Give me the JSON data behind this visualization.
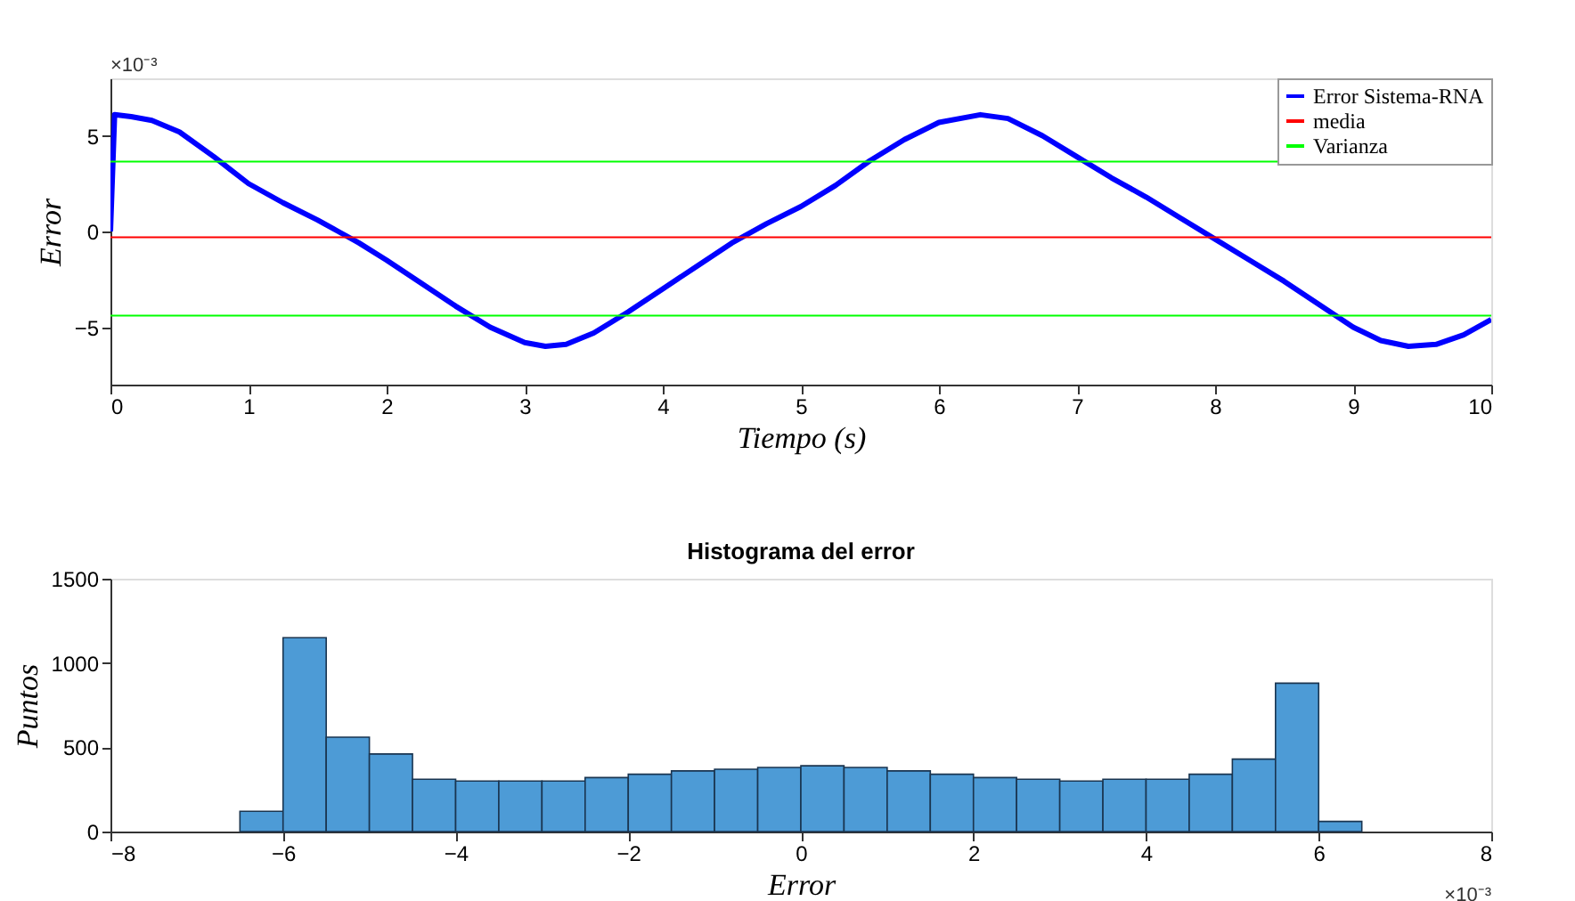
{
  "chart_data": [
    {
      "type": "line",
      "xlabel": "Tiempo (s)",
      "ylabel": "Error",
      "annotations": [
        "×10⁻³"
      ],
      "xlim": [
        0,
        10
      ],
      "xticks": [
        0,
        1,
        2,
        3,
        4,
        5,
        6,
        7,
        8,
        9,
        10
      ],
      "ylim": [
        -8,
        8
      ],
      "yticks": [
        -5,
        0,
        5
      ],
      "grid": false,
      "legend": "top right",
      "series": [
        {
          "name": "Error Sistema-RNA",
          "color": "#0000ff",
          "x": [
            0,
            0.03,
            0.15,
            0.3,
            0.5,
            0.75,
            1,
            1.25,
            1.5,
            1.65,
            1.8,
            2,
            2.25,
            2.5,
            2.75,
            3,
            3.15,
            3.3,
            3.5,
            3.75,
            4,
            4.25,
            4.5,
            4.75,
            5,
            5.25,
            5.5,
            5.75,
            6,
            6.3,
            6.5,
            6.75,
            7,
            7.25,
            7.5,
            7.75,
            8,
            8.25,
            8.5,
            8.75,
            9,
            9.2,
            9.4,
            9.6,
            9.8,
            10
          ],
          "values": [
            0,
            6.1,
            6.0,
            5.8,
            5.2,
            3.9,
            2.5,
            1.5,
            0.6,
            0,
            -0.6,
            -1.5,
            -2.7,
            -3.9,
            -5.0,
            -5.8,
            -6.0,
            -5.9,
            -5.3,
            -4.2,
            -3.0,
            -1.8,
            -0.6,
            0.4,
            1.3,
            2.4,
            3.7,
            4.8,
            5.7,
            6.1,
            5.9,
            5.0,
            3.9,
            2.8,
            1.8,
            0.7,
            -0.4,
            -1.5,
            -2.6,
            -3.8,
            -5.0,
            -5.7,
            -6.0,
            -5.9,
            -5.4,
            -4.6
          ]
        }
      ],
      "ref_lines": [
        {
          "axis": "y",
          "value": -0.3,
          "label": "media",
          "color": "#ff0000"
        },
        {
          "axis": "y",
          "value": 3.65,
          "label": "Varianza",
          "color": "#00ff00"
        },
        {
          "axis": "y",
          "value": -4.4,
          "label": null,
          "color": "#00ff00"
        }
      ]
    },
    {
      "type": "histogram",
      "title": "Histograma del error",
      "xlabel": "Error",
      "ylabel": "Puntos",
      "annotations": [
        "×10⁻³"
      ],
      "xlim": [
        -8,
        8
      ],
      "xticks": [
        -8,
        -6,
        -4,
        -2,
        0,
        2,
        4,
        6,
        8
      ],
      "ylim": [
        0,
        1500
      ],
      "yticks": [
        0,
        500,
        1000,
        1500
      ],
      "grid": false,
      "color": "#4d9bd6",
      "bins": [
        -6.5,
        -6,
        -5.5,
        -5,
        -4.5,
        -4,
        -3.5,
        -3,
        -2.5,
        -2,
        -1.5,
        -1,
        -0.5,
        0,
        0.5,
        1,
        1.5,
        2,
        2.5,
        3,
        3.5,
        4,
        4.5,
        5,
        5.5,
        6,
        6.5
      ],
      "values": [
        120,
        1150,
        560,
        460,
        310,
        300,
        300,
        300,
        320,
        340,
        360,
        370,
        380,
        390,
        380,
        360,
        340,
        320,
        310,
        300,
        310,
        310,
        340,
        430,
        880,
        60
      ]
    }
  ]
}
